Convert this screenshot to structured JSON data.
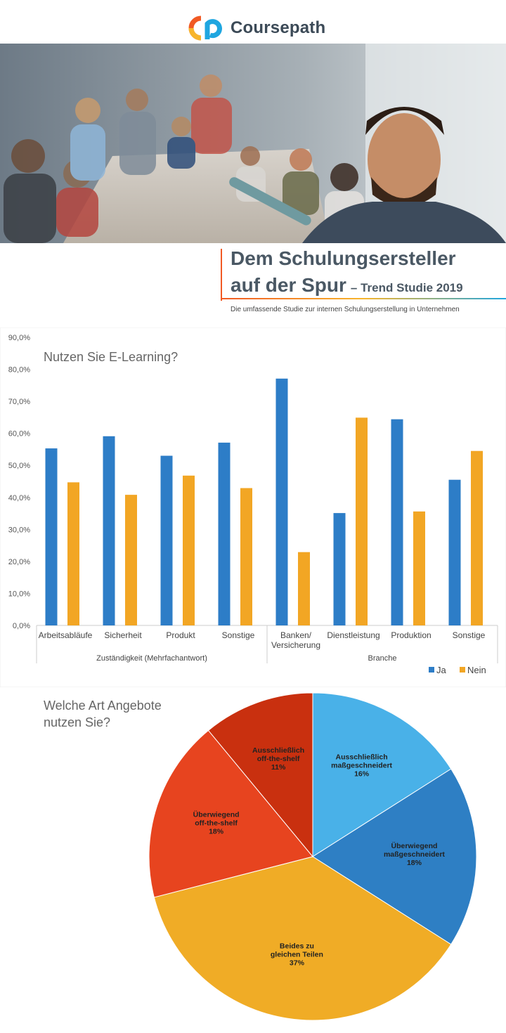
{
  "brand": {
    "name": "Coursepath",
    "colors": {
      "orange": "#f15a24",
      "yellow": "#f7b52c",
      "blue": "#1fa6e0"
    }
  },
  "hero": {
    "image": "photo-of-team-meeting",
    "gradient": [
      "#4b5b6e",
      "#c9cdd0"
    ]
  },
  "header": {
    "title_line1": "Dem Schulungsersteller",
    "title_line2": "auf der Spur",
    "title_suffix": "– Trend Studie 2019",
    "subtitle": "Die umfassende Studie zur internen Schulungserstellung in Unternehmen"
  },
  "chart_data": [
    {
      "type": "bar",
      "title": "Nutzen Sie E-Learning?",
      "categories": [
        "Arbeitsabläufe",
        "Sicherheit",
        "Produkt",
        "Sonstige",
        "Banken/\nVersicherung",
        "Dienstleistung",
        "Produktion",
        "Sonstige"
      ],
      "groups": [
        {
          "label": "Zuständigkeit (Mehrfachantwort)",
          "count": 4
        },
        {
          "label": "Branche",
          "count": 4
        }
      ],
      "series": [
        {
          "name": "Ja",
          "color": "#2d7dc7",
          "values": [
            55.3,
            59.1,
            53.0,
            57.1,
            77.1,
            35.1,
            64.4,
            45.5
          ]
        },
        {
          "name": "Nein",
          "color": "#f2a624",
          "values": [
            44.7,
            40.8,
            46.8,
            42.9,
            22.9,
            64.9,
            35.6,
            54.5
          ]
        }
      ],
      "ylim": [
        0,
        90
      ],
      "yticks": [
        "0,0%",
        "10,0%",
        "20,0%",
        "30,0%",
        "40,0%",
        "50,0%",
        "60,0%",
        "70,0%",
        "80,0%",
        "90,0%"
      ],
      "legend": "bottom-right",
      "grid": false
    },
    {
      "type": "pie",
      "title_lines": [
        "Welche Art Angebote",
        "nutzen Sie?"
      ],
      "slices": [
        {
          "label_lines": [
            "Ausschließlich",
            "maßgeschneidert",
            "16%"
          ],
          "value": 16,
          "color": "#49b1e8"
        },
        {
          "label_lines": [
            "Überwiegend",
            "maßgeschneidert",
            "18%"
          ],
          "value": 18,
          "color": "#2e7fc4"
        },
        {
          "label_lines": [
            "Beides zu",
            "gleichen Teilen",
            "37%"
          ],
          "value": 37,
          "color": "#f0ac26"
        },
        {
          "label_lines": [
            "Überwiegend",
            "off-the-shelf",
            "18%"
          ],
          "value": 18,
          "color": "#e7441f"
        },
        {
          "label_lines": [
            "Ausschließlich",
            "off-the-shelf",
            "11%"
          ],
          "value": 11,
          "color": "#c9300f"
        }
      ]
    }
  ]
}
